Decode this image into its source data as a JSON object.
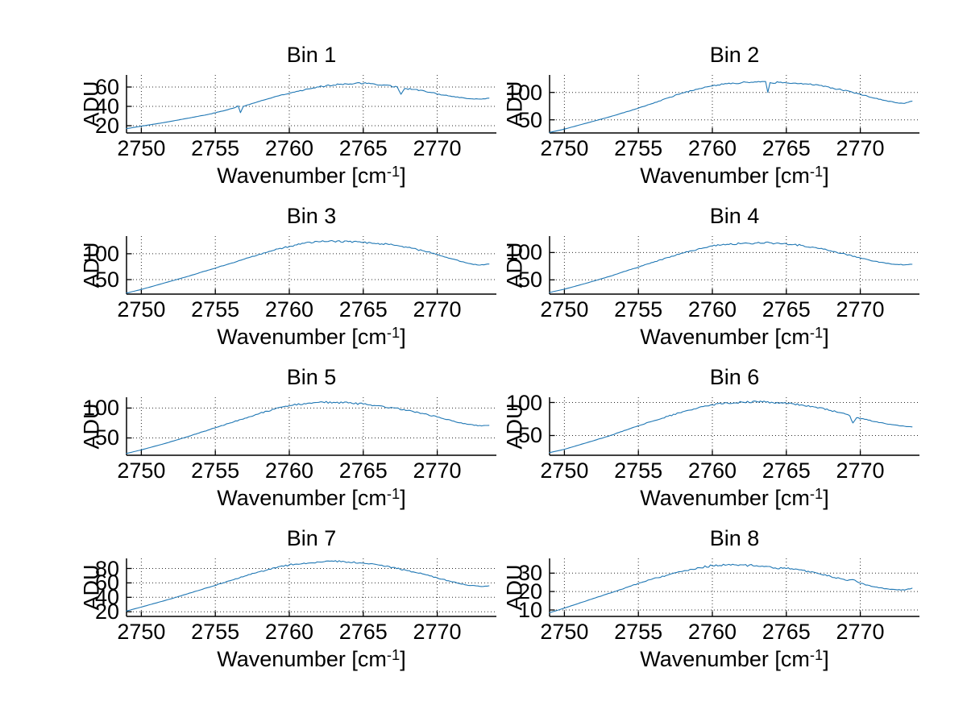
{
  "figure": {
    "background": "#ffffff",
    "axis_color": "#000000",
    "grid_color": "#2b2b2b",
    "line_color": "#1f77b4"
  },
  "chart_data": [
    {
      "type": "line",
      "title": "Bin 1",
      "ylabel": "ADU",
      "xlabel": "Wavenumber [cm^-1]",
      "xlabel_parts": {
        "pre": "Wavenumber [cm",
        "sup": "-1",
        "post": "]"
      },
      "xlim": [
        2749,
        2774
      ],
      "ylim": [
        12.5,
        72.5
      ],
      "xticks": [
        2750,
        2755,
        2760,
        2765,
        2770
      ],
      "yticks": [
        20,
        40,
        60
      ],
      "grid": true,
      "legend": null,
      "color": "#1f77b4",
      "noise": 1.2,
      "points": [
        [
          2749,
          17
        ],
        [
          2750,
          19.5
        ],
        [
          2751.5,
          23.2
        ],
        [
          2753,
          27.3
        ],
        [
          2754.5,
          31.6
        ],
        [
          2755.5,
          35.2
        ],
        [
          2756.3,
          38.5
        ],
        [
          2756.55,
          40.5
        ],
        [
          2756.7,
          33.5
        ],
        [
          2756.9,
          40
        ],
        [
          2757.5,
          43
        ],
        [
          2758.5,
          47.5
        ],
        [
          2759.5,
          52
        ],
        [
          2760.5,
          55.5
        ],
        [
          2761.5,
          58.5
        ],
        [
          2762.5,
          61.5
        ],
        [
          2763.5,
          63
        ],
        [
          2764.5,
          64
        ],
        [
          2765.5,
          63.5
        ],
        [
          2766.5,
          62
        ],
        [
          2767.3,
          60
        ],
        [
          2767.55,
          52.5
        ],
        [
          2767.8,
          58.5
        ],
        [
          2768.5,
          57.5
        ],
        [
          2769.5,
          54.5
        ],
        [
          2770.5,
          51.5
        ],
        [
          2771.5,
          49
        ],
        [
          2772.5,
          47.5
        ],
        [
          2773,
          47.5
        ],
        [
          2773.5,
          48.5
        ]
      ]
    },
    {
      "type": "line",
      "title": "Bin 2",
      "ylabel": "ADU",
      "xlabel": "Wavenumber [cm^-1]",
      "xlabel_parts": {
        "pre": "Wavenumber [cm",
        "sup": "-1",
        "post": "]"
      },
      "xlim": [
        2749,
        2774
      ],
      "ylim": [
        26,
        132
      ],
      "xticks": [
        2750,
        2755,
        2760,
        2765,
        2770
      ],
      "yticks": [
        50,
        100
      ],
      "grid": true,
      "legend": null,
      "color": "#1f77b4",
      "noise": 2.2,
      "points": [
        [
          2749,
          27
        ],
        [
          2750,
          33
        ],
        [
          2751.5,
          44
        ],
        [
          2753,
          55
        ],
        [
          2754.5,
          67
        ],
        [
          2756,
          80
        ],
        [
          2757,
          90
        ],
        [
          2758,
          99
        ],
        [
          2759,
          106
        ],
        [
          2760,
          112
        ],
        [
          2761,
          116
        ],
        [
          2762,
          118
        ],
        [
          2763,
          119
        ],
        [
          2763.6,
          120
        ],
        [
          2763.75,
          100
        ],
        [
          2763.9,
          118
        ],
        [
          2764.5,
          118.5
        ],
        [
          2765.5,
          117
        ],
        [
          2766.5,
          115
        ],
        [
          2767.5,
          111
        ],
        [
          2768.5,
          106
        ],
        [
          2769.5,
          100
        ],
        [
          2770.5,
          93
        ],
        [
          2771.5,
          86
        ],
        [
          2772.5,
          81
        ],
        [
          2773,
          80
        ],
        [
          2773.5,
          84
        ]
      ]
    },
    {
      "type": "line",
      "title": "Bin 3",
      "ylabel": "ADU",
      "xlabel": "Wavenumber [cm^-1]",
      "xlabel_parts": {
        "pre": "Wavenumber [cm",
        "sup": "-1",
        "post": "]"
      },
      "xlim": [
        2749,
        2774
      ],
      "ylim": [
        22,
        134
      ],
      "xticks": [
        2750,
        2755,
        2760,
        2765,
        2770
      ],
      "yticks": [
        50,
        100
      ],
      "grid": true,
      "legend": null,
      "color": "#1f77b4",
      "noise": 2.2,
      "points": [
        [
          2749,
          24
        ],
        [
          2750,
          31
        ],
        [
          2751.5,
          43
        ],
        [
          2753,
          55
        ],
        [
          2754.5,
          68
        ],
        [
          2756,
          81
        ],
        [
          2757,
          90
        ],
        [
          2758,
          99
        ],
        [
          2759,
          107
        ],
        [
          2760,
          114
        ],
        [
          2761,
          120
        ],
        [
          2762,
          123
        ],
        [
          2763,
          124
        ],
        [
          2764,
          123.5
        ],
        [
          2765,
          122
        ],
        [
          2766,
          120
        ],
        [
          2767,
          117
        ],
        [
          2768,
          112
        ],
        [
          2769,
          106
        ],
        [
          2770,
          99
        ],
        [
          2771,
          90
        ],
        [
          2772,
          82
        ],
        [
          2772.8,
          78
        ],
        [
          2773.5,
          80
        ]
      ]
    },
    {
      "type": "line",
      "title": "Bin 4",
      "ylabel": "ADU",
      "xlabel": "Wavenumber [cm^-1]",
      "xlabel_parts": {
        "pre": "Wavenumber [cm",
        "sup": "-1",
        "post": "]"
      },
      "xlim": [
        2749,
        2774
      ],
      "ylim": [
        24,
        130
      ],
      "xticks": [
        2750,
        2755,
        2760,
        2765,
        2770
      ],
      "yticks": [
        50,
        100
      ],
      "grid": true,
      "legend": null,
      "color": "#1f77b4",
      "noise": 2.2,
      "points": [
        [
          2749,
          27
        ],
        [
          2750,
          33
        ],
        [
          2751.5,
          44
        ],
        [
          2753,
          56
        ],
        [
          2754.5,
          69
        ],
        [
          2756,
          82
        ],
        [
          2757,
          91
        ],
        [
          2758,
          99
        ],
        [
          2759,
          106
        ],
        [
          2760,
          112
        ],
        [
          2761,
          115
        ],
        [
          2762,
          116.5
        ],
        [
          2763,
          117.5
        ],
        [
          2764,
          117.5
        ],
        [
          2765,
          116
        ],
        [
          2766,
          113
        ],
        [
          2767,
          109
        ],
        [
          2768,
          103
        ],
        [
          2769,
          97
        ],
        [
          2770,
          90
        ],
        [
          2771,
          84
        ],
        [
          2772,
          79.5
        ],
        [
          2773,
          77.5
        ],
        [
          2773.5,
          78.5
        ]
      ]
    },
    {
      "type": "line",
      "title": "Bin 5",
      "ylabel": "ADU",
      "xlabel": "Wavenumber [cm^-1]",
      "xlabel_parts": {
        "pre": "Wavenumber [cm",
        "sup": "-1",
        "post": "]"
      },
      "xlim": [
        2749,
        2774
      ],
      "ylim": [
        21,
        118
      ],
      "xticks": [
        2750,
        2755,
        2760,
        2765,
        2770
      ],
      "yticks": [
        50,
        100
      ],
      "grid": true,
      "legend": null,
      "color": "#1f77b4",
      "noise": 2.0,
      "points": [
        [
          2749,
          24
        ],
        [
          2750,
          30
        ],
        [
          2751.5,
          40
        ],
        [
          2753,
          51
        ],
        [
          2754.5,
          63
        ],
        [
          2756,
          75
        ],
        [
          2757,
          83
        ],
        [
          2758,
          91
        ],
        [
          2759,
          98
        ],
        [
          2760,
          104
        ],
        [
          2761,
          107.5
        ],
        [
          2762,
          109.5
        ],
        [
          2763,
          109.5
        ],
        [
          2764,
          108.5
        ],
        [
          2765,
          106.5
        ],
        [
          2766,
          104
        ],
        [
          2767,
          100.5
        ],
        [
          2768,
          96
        ],
        [
          2769,
          91
        ],
        [
          2770,
          85
        ],
        [
          2771,
          78.5
        ],
        [
          2772,
          73
        ],
        [
          2773,
          70
        ],
        [
          2773.5,
          71
        ]
      ]
    },
    {
      "type": "line",
      "title": "Bin 6",
      "ylabel": "ADU",
      "xlabel": "Wavenumber [cm^-1]",
      "xlabel_parts": {
        "pre": "Wavenumber [cm",
        "sup": "-1",
        "post": "]"
      },
      "xlim": [
        2749,
        2774
      ],
      "ylim": [
        20,
        108
      ],
      "xticks": [
        2750,
        2755,
        2760,
        2765,
        2770
      ],
      "yticks": [
        50,
        100
      ],
      "grid": true,
      "legend": null,
      "color": "#1f77b4",
      "noise": 1.8,
      "points": [
        [
          2749,
          24
        ],
        [
          2750,
          29
        ],
        [
          2751.5,
          39
        ],
        [
          2753,
          49
        ],
        [
          2754.5,
          61
        ],
        [
          2756,
          72
        ],
        [
          2757,
          79
        ],
        [
          2758,
          86
        ],
        [
          2759,
          91.5
        ],
        [
          2760,
          96.5
        ],
        [
          2761,
          99.5
        ],
        [
          2762,
          100.5
        ],
        [
          2763,
          101.5
        ],
        [
          2764,
          100.5
        ],
        [
          2765,
          99
        ],
        [
          2766,
          96.5
        ],
        [
          2767,
          93
        ],
        [
          2768,
          88
        ],
        [
          2769,
          82.5
        ],
        [
          2769.3,
          79.5
        ],
        [
          2769.5,
          69
        ],
        [
          2769.75,
          77
        ],
        [
          2770.3,
          74.5
        ],
        [
          2771,
          71
        ],
        [
          2772,
          67
        ],
        [
          2773,
          64
        ],
        [
          2773.5,
          63
        ]
      ]
    },
    {
      "type": "line",
      "title": "Bin 7",
      "ylabel": "ADU",
      "xlabel": "Wavenumber [cm^-1]",
      "xlabel_parts": {
        "pre": "Wavenumber [cm",
        "sup": "-1",
        "post": "]"
      },
      "xlim": [
        2749,
        2774
      ],
      "ylim": [
        13.5,
        94
      ],
      "xticks": [
        2750,
        2755,
        2760,
        2765,
        2770
      ],
      "yticks": [
        20,
        40,
        60,
        80
      ],
      "grid": true,
      "legend": null,
      "color": "#1f77b4",
      "noise": 1.4,
      "points": [
        [
          2749,
          21
        ],
        [
          2750,
          26.5
        ],
        [
          2751.5,
          35
        ],
        [
          2753,
          44
        ],
        [
          2754.5,
          53.5
        ],
        [
          2756,
          63
        ],
        [
          2757,
          69.5
        ],
        [
          2758,
          75.5
        ],
        [
          2759,
          81
        ],
        [
          2760,
          85
        ],
        [
          2761,
          87.5
        ],
        [
          2762,
          89
        ],
        [
          2763,
          90
        ],
        [
          2764,
          89
        ],
        [
          2765,
          87.5
        ],
        [
          2766,
          85
        ],
        [
          2767,
          81.5
        ],
        [
          2768,
          77
        ],
        [
          2769,
          72.5
        ],
        [
          2770,
          67
        ],
        [
          2771,
          61.5
        ],
        [
          2772,
          57
        ],
        [
          2773,
          55
        ],
        [
          2773.5,
          56
        ]
      ]
    },
    {
      "type": "line",
      "title": "Bin 8",
      "ylabel": "ADU",
      "xlabel": "Wavenumber [cm^-1]",
      "xlabel_parts": {
        "pre": "Wavenumber [cm",
        "sup": "-1",
        "post": "]"
      },
      "xlim": [
        2749,
        2774
      ],
      "ylim": [
        6.5,
        38
      ],
      "xticks": [
        2750,
        2755,
        2760,
        2765,
        2770
      ],
      "yticks": [
        10,
        20,
        30
      ],
      "grid": true,
      "legend": null,
      "color": "#1f77b4",
      "noise": 0.8,
      "points": [
        [
          2749,
          8.5
        ],
        [
          2750,
          11
        ],
        [
          2751.5,
          15
        ],
        [
          2753,
          19
        ],
        [
          2754.5,
          23
        ],
        [
          2756,
          27
        ],
        [
          2757,
          29
        ],
        [
          2758,
          31
        ],
        [
          2759,
          33
        ],
        [
          2760,
          34
        ],
        [
          2761,
          34.5
        ],
        [
          2762,
          34.5
        ],
        [
          2763,
          34
        ],
        [
          2764,
          33.2
        ],
        [
          2765,
          32.5
        ],
        [
          2766,
          31.8
        ],
        [
          2766.6,
          30.5
        ],
        [
          2767,
          30.2
        ],
        [
          2768,
          28.2
        ],
        [
          2769,
          26.2
        ],
        [
          2769.5,
          26.5
        ],
        [
          2770,
          24.5
        ],
        [
          2771,
          22.5
        ],
        [
          2772,
          21.2
        ],
        [
          2773,
          20.8
        ],
        [
          2773.5,
          21.8
        ]
      ]
    }
  ]
}
